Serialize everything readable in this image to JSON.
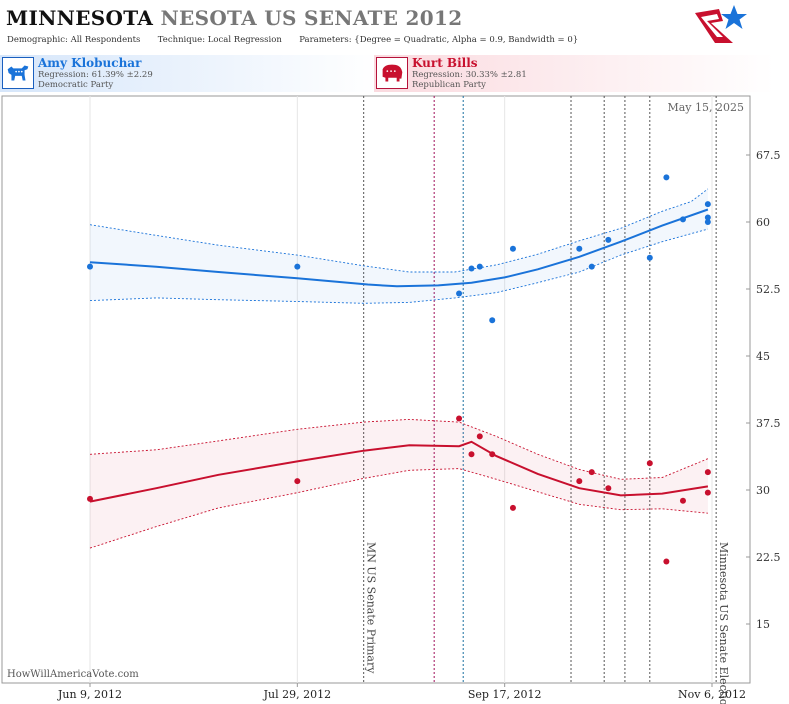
{
  "header": {
    "title_state": "MINNESOTA",
    "title_rest": "NESOTA US SENATE 2012",
    "demographic_label": "Demographic:",
    "demographic_value": "All Respondents",
    "technique_label": "Technique:",
    "technique_value": "Local Regression",
    "parameters_label": "Parameters:",
    "parameters_value": "{Degree = Quadratic, Alpha = 0.9, Bandwidth = 0}"
  },
  "candidates": {
    "dem": {
      "name": "Amy Klobuchar",
      "regression": "Regression: 61.39% ±2.29",
      "party": "Democratic Party",
      "color": "#1a73d9",
      "icon": "donkey-icon"
    },
    "rep": {
      "name": "Kurt Bills",
      "regression": "Regression: 30.33% ±2.81",
      "party": "Republican Party",
      "color": "#c8102e",
      "icon": "elephant-icon"
    }
  },
  "chart_data": {
    "type": "scatter",
    "date_label": "May 15, 2025",
    "watermark": "HowWillAmericaVote.com",
    "x_range": [
      "2012-06-09",
      "2012-11-06"
    ],
    "x_ticks": [
      {
        "date": "2012-06-09",
        "label": "Jun 9, 2012"
      },
      {
        "date": "2012-07-29",
        "label": "Jul 29, 2012"
      },
      {
        "date": "2012-09-17",
        "label": "Sep 17, 2012"
      },
      {
        "date": "2012-11-06",
        "label": "Nov 6, 2012"
      }
    ],
    "ylim": [
      10,
      73
    ],
    "y_ticks": [
      15,
      22.5,
      30,
      37.5,
      45,
      52.5,
      60,
      67.5
    ],
    "events": [
      {
        "date": "2012-08-14",
        "label": "MN US Senate Primary",
        "color": "#555555"
      },
      {
        "date": "2012-08-31",
        "label": "",
        "color": "#a0105a"
      },
      {
        "date": "2012-09-07",
        "label": "",
        "color": "#1a6fa0"
      },
      {
        "date": "2012-10-03",
        "label": "",
        "color": "#555555"
      },
      {
        "date": "2012-10-11",
        "label": "",
        "color": "#555555"
      },
      {
        "date": "2012-10-16",
        "label": "",
        "color": "#555555"
      },
      {
        "date": "2012-10-22",
        "label": "",
        "color": "#555555"
      },
      {
        "date": "2012-11-07",
        "label": "Minnesota US Senate Election",
        "color": "#555555"
      }
    ],
    "series": [
      {
        "key": "dem",
        "color": "#1a73d9",
        "points": [
          [
            "2012-06-09",
            55
          ],
          [
            "2012-07-29",
            55
          ],
          [
            "2012-09-06",
            52
          ],
          [
            "2012-09-09",
            54.8
          ],
          [
            "2012-09-11",
            55
          ],
          [
            "2012-09-14",
            49
          ],
          [
            "2012-09-19",
            57
          ],
          [
            "2012-10-05",
            57
          ],
          [
            "2012-10-08",
            55
          ],
          [
            "2012-10-12",
            58
          ],
          [
            "2012-10-22",
            56
          ],
          [
            "2012-10-26",
            65
          ],
          [
            "2012-10-30",
            60.3
          ],
          [
            "2012-11-05",
            62
          ],
          [
            "2012-11-05",
            60.5
          ],
          [
            "2012-11-05",
            60
          ]
        ],
        "trend": [
          [
            "2012-06-09",
            55.5
          ],
          [
            "2012-06-25",
            55.0
          ],
          [
            "2012-07-10",
            54.4
          ],
          [
            "2012-07-29",
            53.7
          ],
          [
            "2012-08-15",
            53.0
          ],
          [
            "2012-08-22",
            52.8
          ],
          [
            "2012-09-01",
            52.9
          ],
          [
            "2012-09-09",
            53.2
          ],
          [
            "2012-09-17",
            53.8
          ],
          [
            "2012-09-25",
            54.7
          ],
          [
            "2012-10-05",
            56.1
          ],
          [
            "2012-10-15",
            57.8
          ],
          [
            "2012-10-25",
            59.6
          ],
          [
            "2012-11-05",
            61.4
          ]
        ],
        "upper": [
          [
            "2012-06-09",
            59.7
          ],
          [
            "2012-06-25",
            58.5
          ],
          [
            "2012-07-10",
            57.4
          ],
          [
            "2012-07-29",
            56.3
          ],
          [
            "2012-08-14",
            55.1
          ],
          [
            "2012-08-25",
            54.4
          ],
          [
            "2012-09-05",
            54.4
          ],
          [
            "2012-09-15",
            55.2
          ],
          [
            "2012-09-25",
            56.4
          ],
          [
            "2012-10-05",
            57.9
          ],
          [
            "2012-10-15",
            59.3
          ],
          [
            "2012-10-25",
            61.2
          ],
          [
            "2012-11-01",
            62.3
          ],
          [
            "2012-11-05",
            63.7
          ]
        ],
        "lower": [
          [
            "2012-06-09",
            51.2
          ],
          [
            "2012-06-25",
            51.5
          ],
          [
            "2012-07-10",
            51.3
          ],
          [
            "2012-07-29",
            51.1
          ],
          [
            "2012-08-14",
            50.9
          ],
          [
            "2012-08-25",
            51.0
          ],
          [
            "2012-09-05",
            51.5
          ],
          [
            "2012-09-15",
            52.1
          ],
          [
            "2012-09-25",
            53.2
          ],
          [
            "2012-10-05",
            54.4
          ],
          [
            "2012-10-15",
            56.3
          ],
          [
            "2012-10-25",
            57.8
          ],
          [
            "2012-11-01",
            58.7
          ],
          [
            "2012-11-05",
            59.2
          ]
        ]
      },
      {
        "key": "rep",
        "color": "#c8102e",
        "points": [
          [
            "2012-06-09",
            29
          ],
          [
            "2012-07-29",
            31
          ],
          [
            "2012-09-06",
            38
          ],
          [
            "2012-09-09",
            34
          ],
          [
            "2012-09-11",
            36
          ],
          [
            "2012-09-14",
            34
          ],
          [
            "2012-09-19",
            28
          ],
          [
            "2012-10-05",
            31
          ],
          [
            "2012-10-08",
            32
          ],
          [
            "2012-10-12",
            30.2
          ],
          [
            "2012-10-22",
            33
          ],
          [
            "2012-10-26",
            22
          ],
          [
            "2012-10-30",
            28.8
          ],
          [
            "2012-11-05",
            32
          ],
          [
            "2012-11-05",
            29.7
          ]
        ],
        "trend": [
          [
            "2012-06-09",
            28.7
          ],
          [
            "2012-06-25",
            30.2
          ],
          [
            "2012-07-10",
            31.7
          ],
          [
            "2012-07-29",
            33.2
          ],
          [
            "2012-08-14",
            34.4
          ],
          [
            "2012-08-25",
            35.0
          ],
          [
            "2012-09-06",
            34.9
          ],
          [
            "2012-09-09",
            35.4
          ],
          [
            "2012-09-15",
            33.8
          ],
          [
            "2012-09-25",
            31.8
          ],
          [
            "2012-10-05",
            30.2
          ],
          [
            "2012-10-15",
            29.4
          ],
          [
            "2012-10-25",
            29.6
          ],
          [
            "2012-11-05",
            30.4
          ]
        ],
        "upper": [
          [
            "2012-06-09",
            34.0
          ],
          [
            "2012-06-25",
            34.5
          ],
          [
            "2012-07-10",
            35.5
          ],
          [
            "2012-07-29",
            36.8
          ],
          [
            "2012-08-14",
            37.6
          ],
          [
            "2012-08-25",
            37.9
          ],
          [
            "2012-09-06",
            37.6
          ],
          [
            "2012-09-15",
            36.0
          ],
          [
            "2012-09-25",
            34.0
          ],
          [
            "2012-10-05",
            32.3
          ],
          [
            "2012-10-15",
            31.2
          ],
          [
            "2012-10-25",
            31.4
          ],
          [
            "2012-11-05",
            33.5
          ]
        ],
        "lower": [
          [
            "2012-06-09",
            23.5
          ],
          [
            "2012-06-25",
            25.9
          ],
          [
            "2012-07-10",
            28.0
          ],
          [
            "2012-07-29",
            29.7
          ],
          [
            "2012-08-14",
            31.3
          ],
          [
            "2012-08-25",
            32.2
          ],
          [
            "2012-09-06",
            32.4
          ],
          [
            "2012-09-15",
            31.2
          ],
          [
            "2012-09-25",
            29.8
          ],
          [
            "2012-10-05",
            28.4
          ],
          [
            "2012-10-15",
            27.8
          ],
          [
            "2012-10-25",
            27.9
          ],
          [
            "2012-11-05",
            27.4
          ]
        ]
      }
    ]
  }
}
